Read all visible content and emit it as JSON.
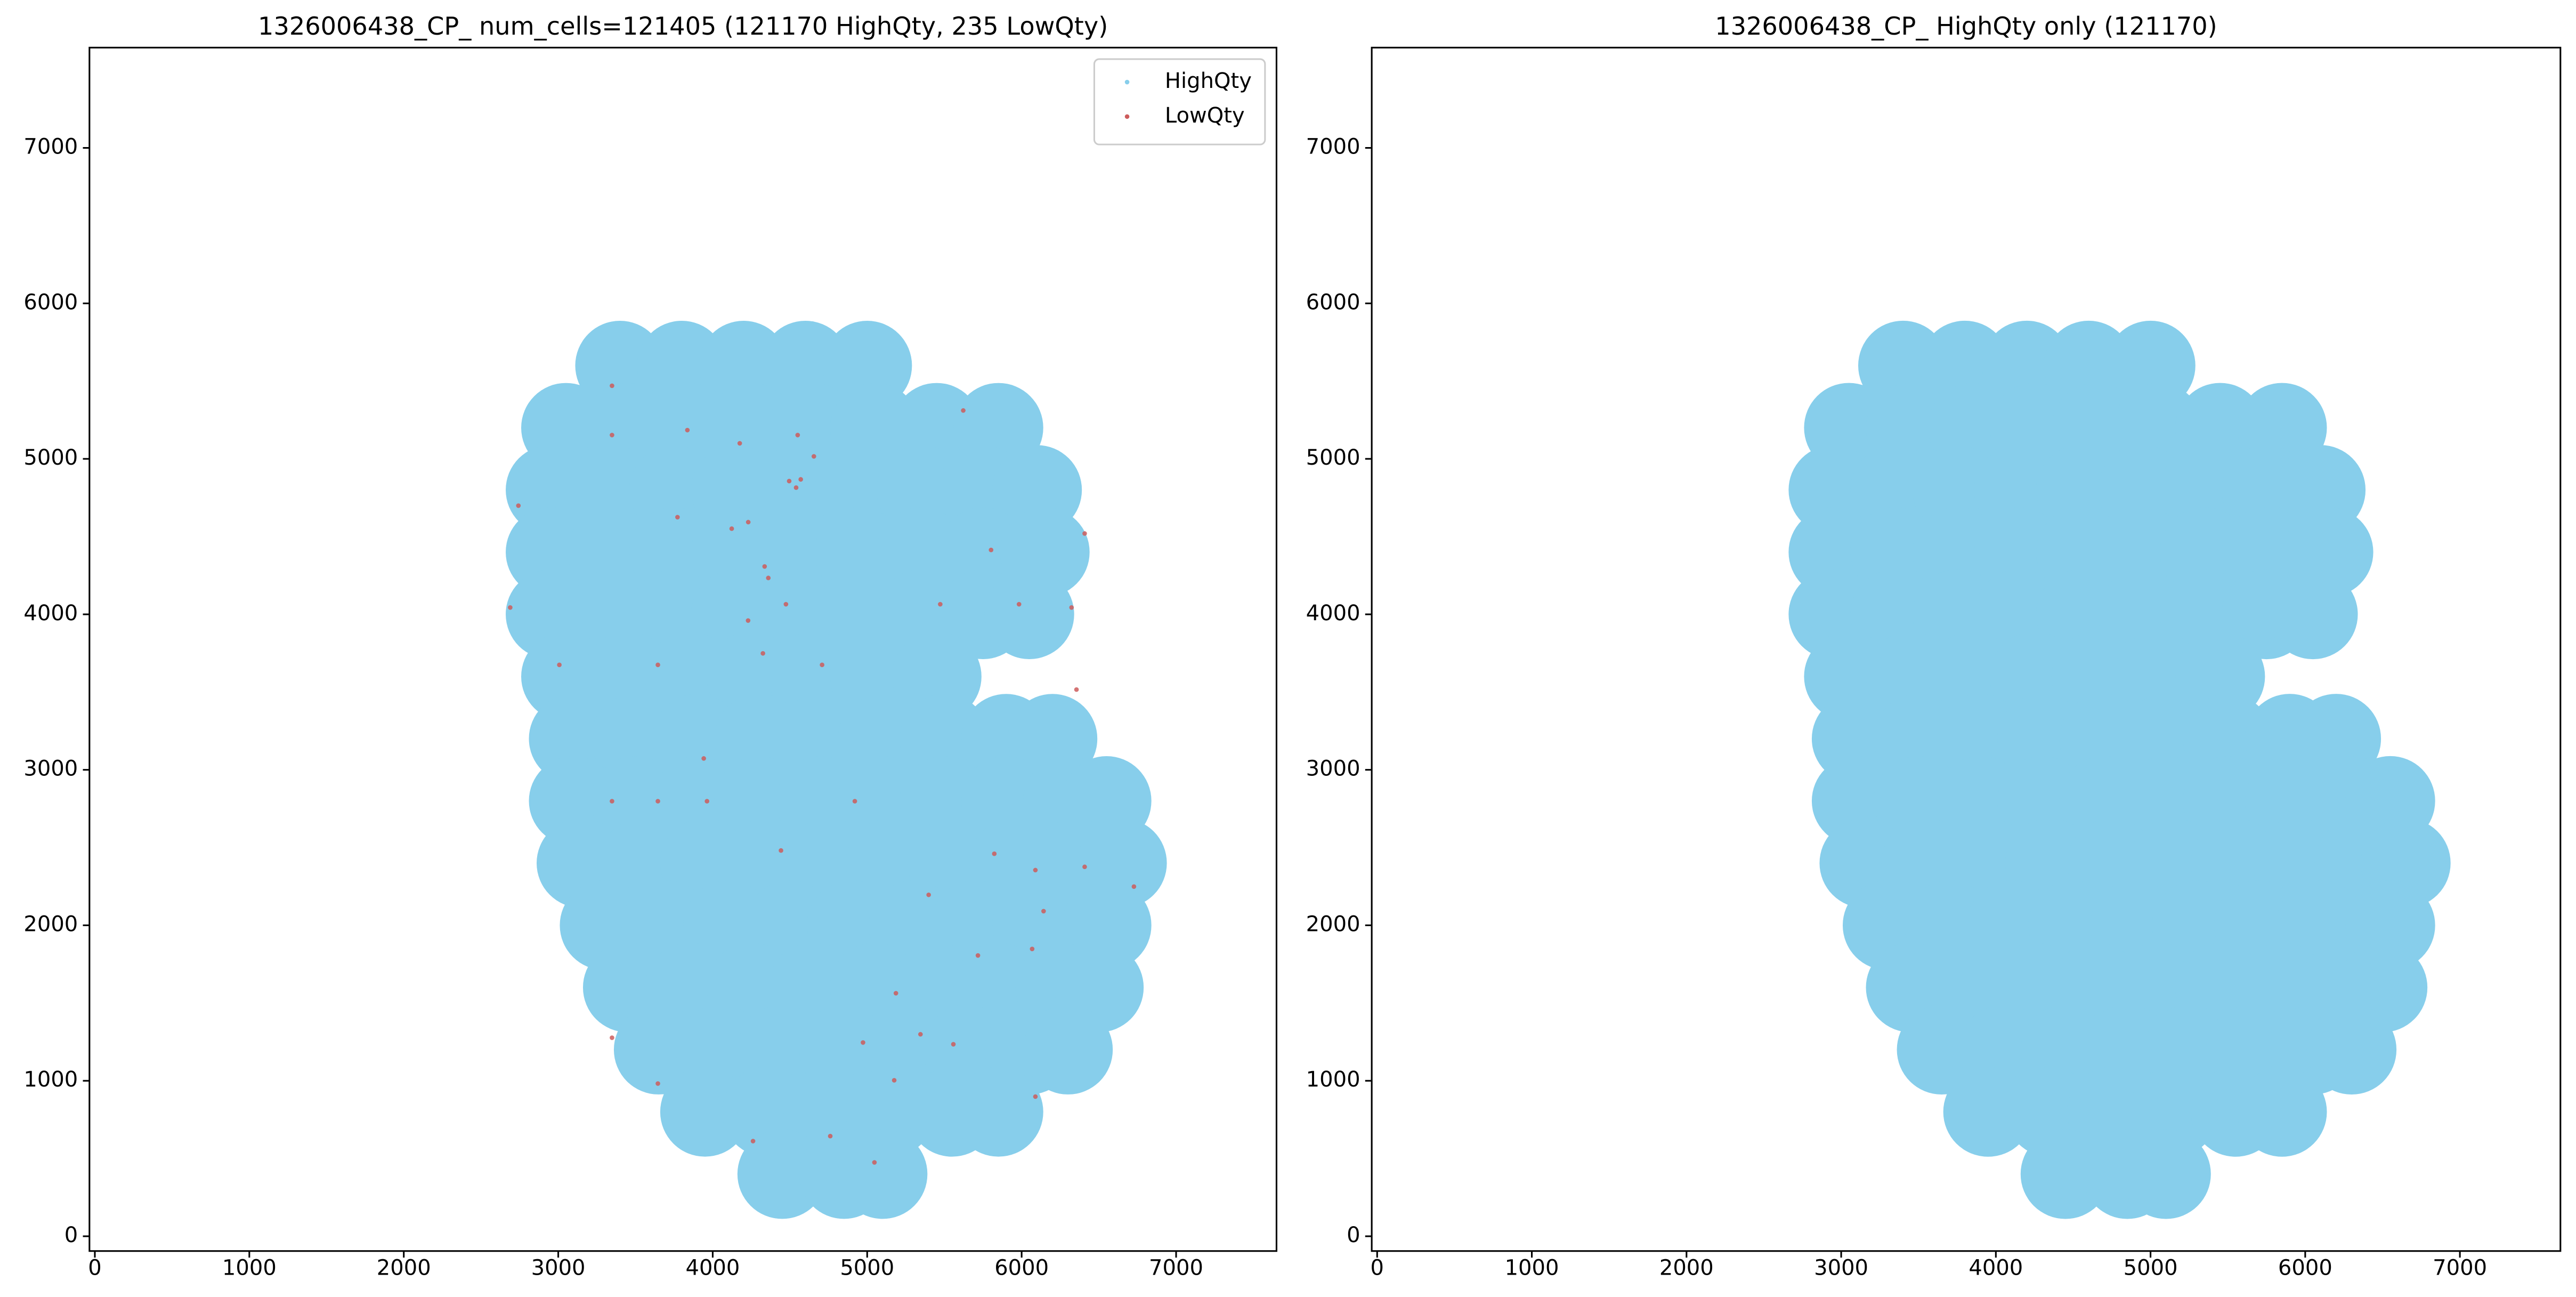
{
  "chart_data": [
    {
      "type": "scatter",
      "title": "1326006438_CP_ num_cells=121405 (121170 HighQty, 235 LowQty)",
      "legend": "upper right",
      "xlim": [
        -35,
        7650
      ],
      "ylim": [
        -95,
        7645
      ],
      "xticks": [
        0,
        1000,
        2000,
        3000,
        4000,
        5000,
        6000,
        7000
      ],
      "yticks": [
        0,
        1000,
        2000,
        3000,
        4000,
        5000,
        6000,
        7000
      ],
      "series": [
        {
          "name": "HighQty",
          "color": "#87ceeb",
          "x": [
            3400,
            3800,
            4200,
            4600,
            5000,
            3050,
            3450,
            3850,
            4250,
            4650,
            5050,
            5450,
            5850,
            2950,
            3350,
            3750,
            4150,
            4550,
            4950,
            5350,
            5750,
            6100,
            2950,
            3350,
            3750,
            4150,
            4550,
            4950,
            5350,
            5750,
            6150,
            2950,
            3350,
            3750,
            4150,
            4550,
            4950,
            5350,
            5750,
            6050,
            3050,
            3450,
            3850,
            4250,
            4650,
            5050,
            5450,
            3100,
            3500,
            3900,
            4300,
            4700,
            5100,
            5500,
            5900,
            6200,
            3100,
            3500,
            3900,
            4300,
            4700,
            5100,
            5500,
            5900,
            6300,
            6550,
            3150,
            3550,
            3950,
            4350,
            4750,
            5150,
            5550,
            5950,
            6350,
            6650,
            3300,
            3700,
            4100,
            4500,
            4900,
            5300,
            5700,
            6100,
            6550,
            3450,
            3850,
            4250,
            4650,
            5050,
            5450,
            5850,
            6250,
            6500,
            3650,
            4050,
            4450,
            4850,
            5250,
            5650,
            6050,
            6300,
            3950,
            4350,
            4750,
            5150,
            5550,
            5850,
            4450,
            4850,
            5100
          ],
          "y": [
            5600,
            5600,
            5600,
            5600,
            5600,
            5200,
            5200,
            5200,
            5200,
            5200,
            5200,
            5200,
            5200,
            4800,
            4800,
            4800,
            4800,
            4800,
            4800,
            4800,
            4800,
            4800,
            4400,
            4400,
            4400,
            4400,
            4400,
            4400,
            4400,
            4400,
            4400,
            4000,
            4000,
            4000,
            4000,
            4000,
            4000,
            4000,
            4000,
            4000,
            3600,
            3600,
            3600,
            3600,
            3600,
            3600,
            3600,
            3200,
            3200,
            3200,
            3200,
            3200,
            3200,
            3200,
            3200,
            3200,
            2800,
            2800,
            2800,
            2800,
            2800,
            2800,
            2800,
            2800,
            2800,
            2800,
            2400,
            2400,
            2400,
            2400,
            2400,
            2400,
            2400,
            2400,
            2400,
            2400,
            2000,
            2000,
            2000,
            2000,
            2000,
            2000,
            2000,
            2000,
            2000,
            1600,
            1600,
            1600,
            1600,
            1600,
            1600,
            1600,
            1600,
            1600,
            1200,
            1200,
            1200,
            1200,
            1200,
            1200,
            1200,
            1200,
            800,
            800,
            800,
            800,
            800,
            800,
            400,
            400,
            400
          ]
        },
        {
          "name": "LowQty",
          "color": "#cd5c5c",
          "x": [
            4495,
            4540,
            4570,
            4123,
            4230,
            4336,
            4360,
            3348,
            3348,
            3836,
            4175,
            4550,
            4655,
            2742,
            3772,
            2689,
            3007,
            3645,
            4325,
            4708,
            4474,
            3942,
            3963,
            3348,
            3645,
            4920,
            4442,
            5398,
            5823,
            6089,
            6408,
            6727,
            6142,
            6068,
            5717,
            5186,
            4973,
            5345,
            5558,
            3348,
            3645,
            5175,
            4261,
            4761,
            5047,
            6089,
            6355,
            5983,
            6323,
            6408,
            5802,
            5473,
            5622,
            4229
          ],
          "y": [
            4857,
            4815,
            4868,
            4551,
            4593,
            4308,
            4234,
            5470,
            5153,
            5185,
            5100,
            5153,
            5016,
            4699,
            4625,
            4044,
            3675,
            3675,
            3749,
            3675,
            4065,
            3073,
            2798,
            2798,
            2798,
            2798,
            2481,
            2196,
            2460,
            2355,
            2376,
            2249,
            2091,
            1848,
            1806,
            1563,
            1246,
            1299,
            1235,
            1277,
            982,
            1003,
            612,
            644,
            475,
            898,
            3516,
            4065,
            4044,
            4520,
            4414,
            4065,
            5311,
            3960
          ]
        }
      ]
    },
    {
      "type": "scatter",
      "title": "1326006438_CP_ HighQty only (121170)",
      "xlim": [
        -35,
        7650
      ],
      "ylim": [
        -95,
        7645
      ],
      "xticks": [
        0,
        1000,
        2000,
        3000,
        4000,
        5000,
        6000,
        7000
      ],
      "yticks": [
        0,
        1000,
        2000,
        3000,
        4000,
        5000,
        6000,
        7000
      ],
      "series": [
        {
          "color": "#87ceeb",
          "x": [
            3400,
            3800,
            4200,
            4600,
            5000,
            3050,
            3450,
            3850,
            4250,
            4650,
            5050,
            5450,
            5850,
            2950,
            3350,
            3750,
            4150,
            4550,
            4950,
            5350,
            5750,
            6100,
            2950,
            3350,
            3750,
            4150,
            4550,
            4950,
            5350,
            5750,
            6150,
            2950,
            3350,
            3750,
            4150,
            4550,
            4950,
            5350,
            5750,
            6050,
            3050,
            3450,
            3850,
            4250,
            4650,
            5050,
            5450,
            3100,
            3500,
            3900,
            4300,
            4700,
            5100,
            5500,
            5900,
            6200,
            3100,
            3500,
            3900,
            4300,
            4700,
            5100,
            5500,
            5900,
            6300,
            6550,
            3150,
            3550,
            3950,
            4350,
            4750,
            5150,
            5550,
            5950,
            6350,
            6650,
            3300,
            3700,
            4100,
            4500,
            4900,
            5300,
            5700,
            6100,
            6550,
            3450,
            3850,
            4250,
            4650,
            5050,
            5450,
            5850,
            6250,
            6500,
            3650,
            4050,
            4450,
            4850,
            5250,
            5650,
            6050,
            6300,
            3950,
            4350,
            4750,
            5150,
            5550,
            5850,
            4450,
            4850,
            5100
          ],
          "y": [
            5600,
            5600,
            5600,
            5600,
            5600,
            5200,
            5200,
            5200,
            5200,
            5200,
            5200,
            5200,
            5200,
            4800,
            4800,
            4800,
            4800,
            4800,
            4800,
            4800,
            4800,
            4800,
            4400,
            4400,
            4400,
            4400,
            4400,
            4400,
            4400,
            4400,
            4400,
            4000,
            4000,
            4000,
            4000,
            4000,
            4000,
            4000,
            4000,
            4000,
            3600,
            3600,
            3600,
            3600,
            3600,
            3600,
            3600,
            3200,
            3200,
            3200,
            3200,
            3200,
            3200,
            3200,
            3200,
            3200,
            2800,
            2800,
            2800,
            2800,
            2800,
            2800,
            2800,
            2800,
            2800,
            2800,
            2400,
            2400,
            2400,
            2400,
            2400,
            2400,
            2400,
            2400,
            2400,
            2400,
            2000,
            2000,
            2000,
            2000,
            2000,
            2000,
            2000,
            2000,
            2000,
            1600,
            1600,
            1600,
            1600,
            1600,
            1600,
            1600,
            1600,
            1600,
            1200,
            1200,
            1200,
            1200,
            1200,
            1200,
            1200,
            1200,
            800,
            800,
            800,
            800,
            800,
            800,
            400,
            400,
            400
          ]
        }
      ]
    }
  ]
}
